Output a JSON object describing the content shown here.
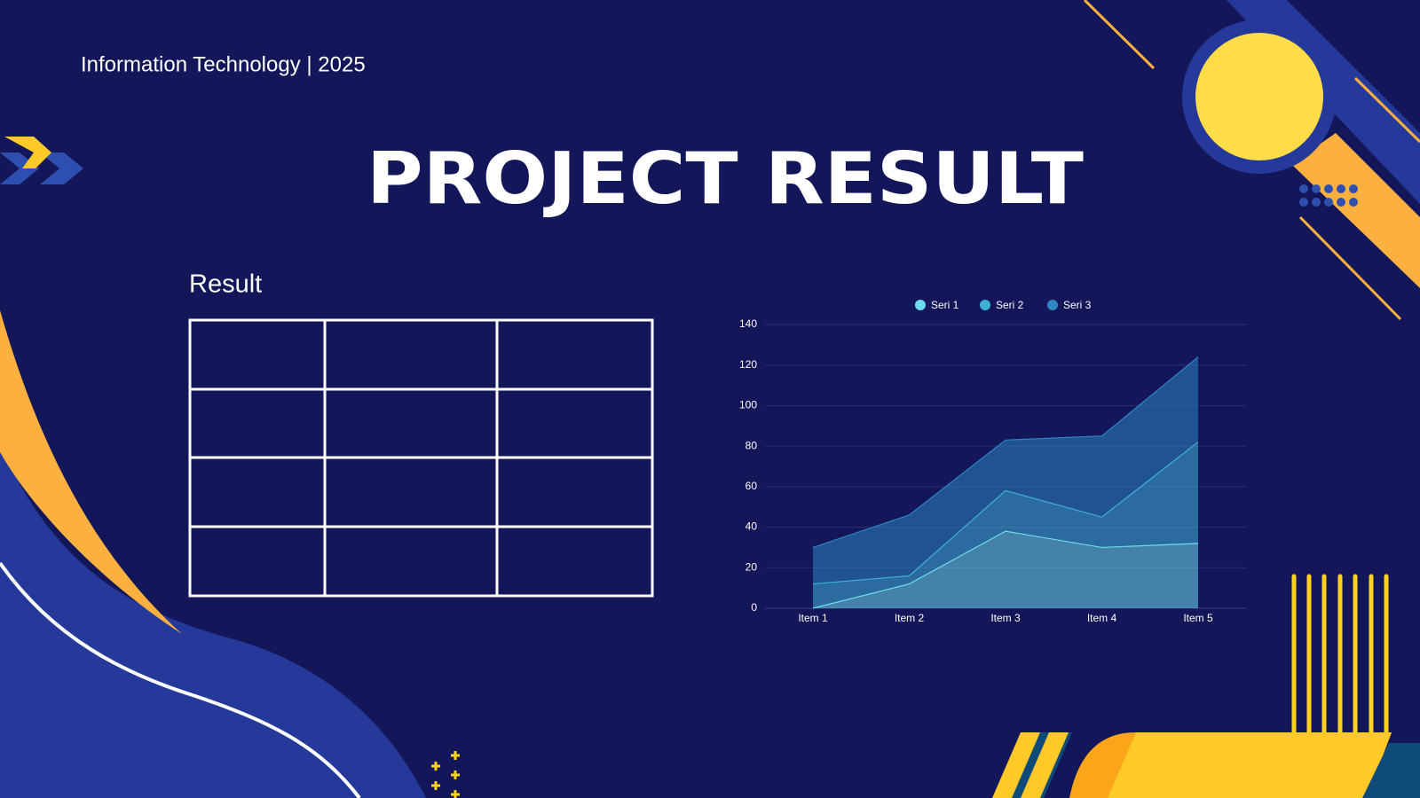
{
  "header": "Information Technology | 2025",
  "title": "PROJECT RESULT",
  "table_title": "Result",
  "chart_data": {
    "type": "area",
    "stacked": true,
    "categories": [
      "Item 1",
      "Item 2",
      "Item 3",
      "Item 4",
      "Item 5"
    ],
    "series": [
      {
        "name": "Seri 1",
        "color": "#6fdcee",
        "values": [
          0,
          12,
          38,
          30,
          32
        ]
      },
      {
        "name": "Seri 2",
        "color": "#3fb2d8",
        "values": [
          12,
          4,
          20,
          15,
          50
        ]
      },
      {
        "name": "Seri 3",
        "color": "#2d86c2",
        "values": [
          18,
          30,
          25,
          40,
          42
        ]
      }
    ],
    "ylim": [
      0,
      140
    ],
    "yticks": [
      0,
      20,
      40,
      60,
      80,
      100,
      120,
      140
    ],
    "grid": true,
    "legend": "top"
  }
}
